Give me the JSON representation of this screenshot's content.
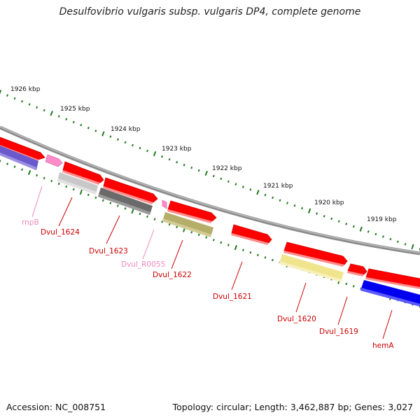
{
  "title": "Desulfovibrio vulgaris subsp. vulgaris DP4, complete genome",
  "footer": {
    "accession": "Accession: NC_008751",
    "summary": "Topology: circular; Length: 3,462,887 bp; Genes: 3,027"
  },
  "colors": {
    "backbone": "#8c8c8c",
    "tick": "#1f7a1f",
    "red_gene": "#ff0000",
    "red_label": "#cc0000",
    "rna_gene": "#ff8cc8",
    "rna_label": "#ee88bb",
    "purple_gene": "#6a5acd",
    "blue_gene": "#0000ee",
    "light_gray_gene": "#c8c8c8",
    "dark_gray_gene": "#6a6a6a",
    "olive_gene": "#b5ad6a",
    "pale_yellow_gene": "#f0e48c"
  },
  "scale": {
    "unit": "kbp",
    "labels": [
      {
        "kbp": 1926,
        "text": "1926 kbp"
      },
      {
        "kbp": 1925,
        "text": "1925 kbp"
      },
      {
        "kbp": 1924,
        "text": "1924 kbp"
      },
      {
        "kbp": 1923,
        "text": "1923 kbp"
      },
      {
        "kbp": 1922,
        "text": "1922 kbp"
      },
      {
        "kbp": 1921,
        "text": "1921 kbp"
      },
      {
        "kbp": 1920,
        "text": "1920 kbp"
      },
      {
        "kbp": 1919,
        "text": "1919 kbp"
      }
    ]
  },
  "genes": [
    {
      "label": "rnpB",
      "type": "ncRNA",
      "color": "rna"
    },
    {
      "label": "Dvul_1624",
      "type": "CDS",
      "color": "red"
    },
    {
      "label": "Dvul_1623",
      "type": "CDS",
      "color": "red"
    },
    {
      "label": "Dvul_R0055",
      "type": "tRNA",
      "color": "rna"
    },
    {
      "label": "Dvul_1622",
      "type": "CDS",
      "color": "red"
    },
    {
      "label": "Dvul_1621",
      "type": "CDS",
      "color": "red"
    },
    {
      "label": "Dvul_1620",
      "type": "CDS",
      "color": "red"
    },
    {
      "label": "Dvul_1619",
      "type": "CDS",
      "color": "red"
    },
    {
      "label": "hemA",
      "type": "CDS",
      "color": "red"
    }
  ]
}
